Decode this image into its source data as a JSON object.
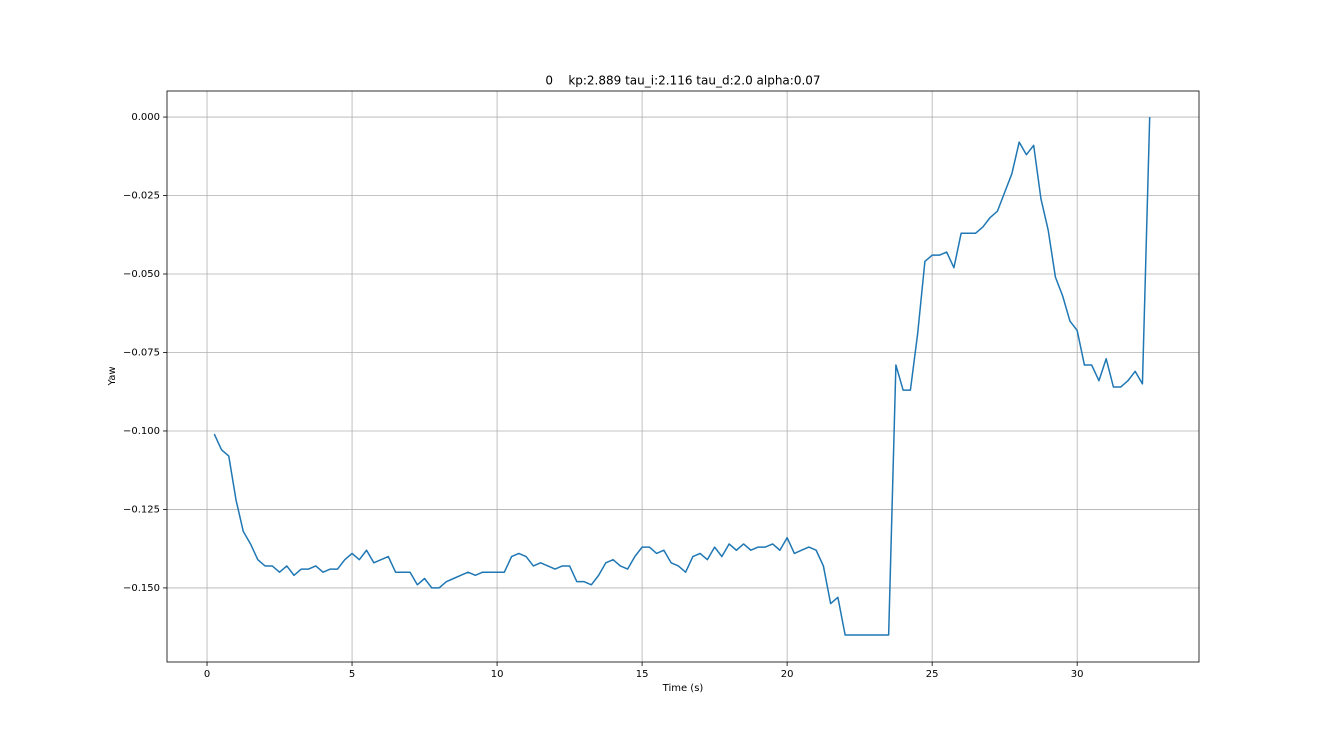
{
  "chart_data": {
    "type": "line",
    "title": "0    kp:2.889 tau_i:2.116 tau_d:2.0 alpha:0.07",
    "xlabel": "Time (s)",
    "ylabel": "Yaw",
    "x": [
      0.25,
      0.5,
      0.75,
      1.0,
      1.25,
      1.5,
      1.75,
      2.0,
      2.25,
      2.5,
      2.75,
      3.0,
      3.25,
      3.5,
      3.75,
      4.0,
      4.25,
      4.5,
      4.75,
      5.0,
      5.25,
      5.5,
      5.75,
      6.0,
      6.25,
      6.5,
      6.75,
      7.0,
      7.25,
      7.5,
      7.75,
      8.0,
      8.25,
      8.5,
      8.75,
      9.0,
      9.25,
      9.5,
      9.75,
      10.0,
      10.25,
      10.5,
      10.75,
      11.0,
      11.25,
      11.5,
      11.75,
      12.0,
      12.25,
      12.5,
      12.75,
      13.0,
      13.25,
      13.5,
      13.75,
      14.0,
      14.25,
      14.5,
      14.75,
      15.0,
      15.25,
      15.5,
      15.75,
      16.0,
      16.25,
      16.5,
      16.75,
      17.0,
      17.25,
      17.5,
      17.75,
      18.0,
      18.25,
      18.5,
      18.75,
      19.0,
      19.25,
      19.5,
      19.75,
      20.0,
      20.25,
      20.5,
      20.75,
      21.0,
      21.25,
      21.5,
      21.75,
      22.0,
      22.25,
      22.5,
      22.75,
      23.0,
      23.25,
      23.5,
      23.75,
      24.0,
      24.25,
      24.5,
      24.75,
      25.0,
      25.25,
      25.5,
      25.75,
      26.0,
      26.25,
      26.5,
      26.75,
      27.0,
      27.25,
      27.5,
      27.75,
      28.0,
      28.25,
      28.5,
      28.75,
      29.0,
      29.25,
      29.5,
      29.75,
      30.0,
      30.25,
      30.5,
      30.75,
      31.0,
      31.25,
      31.5,
      31.75,
      32.0,
      32.25,
      32.5
    ],
    "series": [
      {
        "name": "Yaw",
        "color": "#1f77b4",
        "values": [
          -0.101,
          -0.106,
          -0.108,
          -0.122,
          -0.132,
          -0.136,
          -0.141,
          -0.143,
          -0.143,
          -0.145,
          -0.143,
          -0.146,
          -0.144,
          -0.144,
          -0.143,
          -0.145,
          -0.144,
          -0.144,
          -0.141,
          -0.139,
          -0.141,
          -0.138,
          -0.142,
          -0.141,
          -0.14,
          -0.145,
          -0.145,
          -0.145,
          -0.149,
          -0.147,
          -0.15,
          -0.15,
          -0.148,
          -0.147,
          -0.146,
          -0.145,
          -0.146,
          -0.145,
          -0.145,
          -0.145,
          -0.145,
          -0.14,
          -0.139,
          -0.14,
          -0.143,
          -0.142,
          -0.143,
          -0.144,
          -0.143,
          -0.143,
          -0.148,
          -0.148,
          -0.149,
          -0.146,
          -0.142,
          -0.141,
          -0.143,
          -0.144,
          -0.14,
          -0.137,
          -0.137,
          -0.139,
          -0.138,
          -0.142,
          -0.143,
          -0.145,
          -0.14,
          -0.139,
          -0.141,
          -0.137,
          -0.14,
          -0.136,
          -0.138,
          -0.136,
          -0.138,
          -0.137,
          -0.137,
          -0.136,
          -0.138,
          -0.134,
          -0.139,
          -0.138,
          -0.137,
          -0.138,
          -0.143,
          -0.155,
          -0.153,
          -0.165,
          -0.165,
          -0.165,
          -0.165,
          -0.165,
          -0.165,
          -0.165,
          -0.079,
          -0.087,
          -0.087,
          -0.069,
          -0.046,
          -0.044,
          -0.044,
          -0.043,
          -0.048,
          -0.037,
          -0.037,
          -0.037,
          -0.035,
          -0.032,
          -0.03,
          -0.024,
          -0.018,
          -0.008,
          -0.012,
          -0.009,
          -0.026,
          -0.036,
          -0.051,
          -0.057,
          -0.065,
          -0.068,
          -0.079,
          -0.079,
          -0.084,
          -0.077,
          -0.086,
          -0.086,
          -0.084,
          -0.081,
          -0.085,
          0.0
        ]
      }
    ],
    "xlim": [
      -1.38,
      34.2
    ],
    "ylim": [
      -0.1736,
      0.0083
    ],
    "xticks": [
      0,
      5,
      10,
      15,
      20,
      25,
      30
    ],
    "yticks": [
      {
        "value": -0.15,
        "label": "−0.150"
      },
      {
        "value": -0.125,
        "label": "−0.125"
      },
      {
        "value": -0.1,
        "label": "−0.100"
      },
      {
        "value": -0.075,
        "label": "−0.075"
      },
      {
        "value": -0.05,
        "label": "−0.050"
      },
      {
        "value": -0.025,
        "label": "−0.025"
      },
      {
        "value": 0,
        "label": "0.000"
      }
    ],
    "grid": true
  }
}
